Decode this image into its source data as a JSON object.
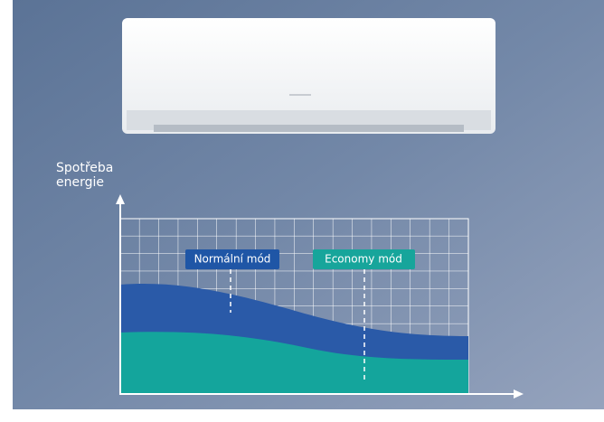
{
  "axis_label": {
    "line1": "Spotřeba",
    "line2": "energie"
  },
  "modes": {
    "normal": "Normální mód",
    "economy": "Economy mód"
  }
}
